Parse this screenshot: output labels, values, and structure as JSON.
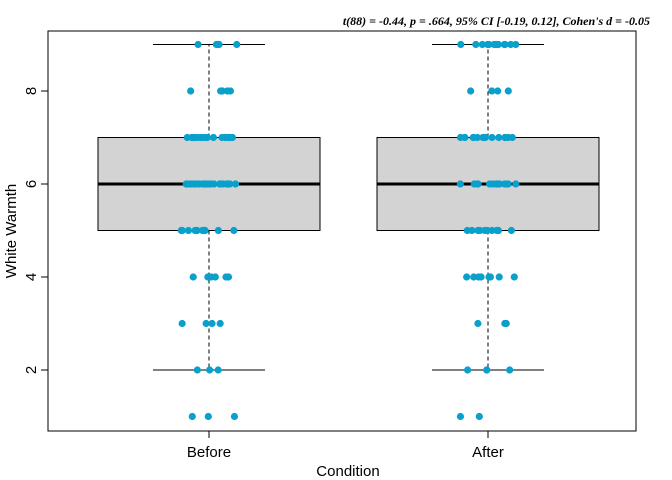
{
  "chart_data": {
    "type": "boxplot",
    "title": "",
    "annotation": "t(88) = -0.44, p = .664, 95% CI [-0.19, 0.12], Cohen's d = -0.05",
    "xlabel": "Condition",
    "ylabel": "White Warmth",
    "ylim": [
      0.7,
      9.4
    ],
    "yticks": [
      2,
      4,
      6,
      8
    ],
    "categories": [
      "Before",
      "After"
    ],
    "box_color": "#d3d3d3",
    "point_color": "#0aa0cc",
    "boxes": [
      {
        "name": "Before",
        "whisker_low": 2,
        "q1": 5,
        "median": 6,
        "q3": 7,
        "whisker_high": 9
      },
      {
        "name": "After",
        "whisker_low": 2,
        "q1": 5,
        "median": 6,
        "q3": 7,
        "whisker_high": 9
      }
    ],
    "points": [
      {
        "category": "Before",
        "values": [
          9,
          9,
          9,
          9,
          9,
          9,
          8,
          8,
          8,
          8,
          8,
          7,
          7,
          7,
          7,
          7,
          7,
          7,
          7,
          7,
          7,
          7,
          7,
          7,
          7,
          7,
          7,
          7,
          7,
          6,
          6,
          6,
          6,
          6,
          6,
          6,
          6,
          6,
          6,
          6,
          6,
          6,
          6,
          6,
          6,
          6,
          6,
          6,
          6,
          6,
          6,
          6,
          6,
          6,
          5,
          5,
          5,
          5,
          5,
          5,
          5,
          5,
          5,
          5,
          5,
          5,
          5,
          4,
          4,
          4,
          4,
          4,
          4,
          3,
          3,
          3,
          3,
          2,
          2,
          2,
          1,
          1,
          1
        ]
      },
      {
        "category": "After",
        "values": [
          9,
          9,
          9,
          9,
          9,
          9,
          9,
          9,
          9,
          9,
          9,
          9,
          9,
          8,
          8,
          8,
          8,
          7,
          7,
          7,
          7,
          7,
          7,
          7,
          7,
          7,
          7,
          7,
          7,
          7,
          7,
          7,
          6,
          6,
          6,
          6,
          6,
          6,
          6,
          6,
          6,
          6,
          6,
          6,
          6,
          6,
          5,
          5,
          5,
          5,
          5,
          5,
          5,
          5,
          5,
          5,
          5,
          5,
          4,
          4,
          4,
          4,
          4,
          4,
          4,
          4,
          3,
          3,
          3,
          2,
          2,
          2,
          2,
          1,
          1
        ]
      }
    ]
  }
}
